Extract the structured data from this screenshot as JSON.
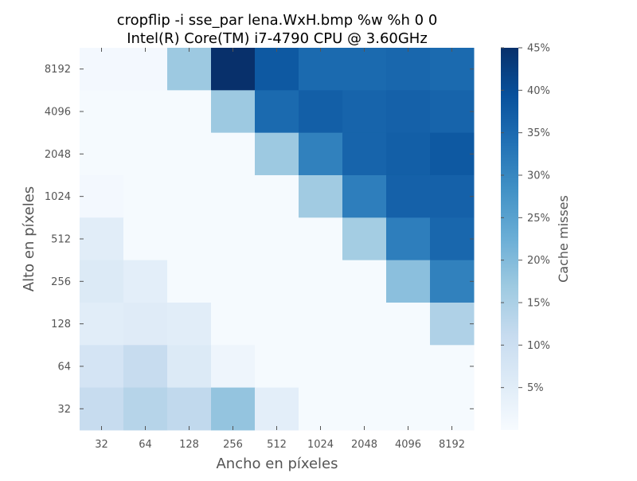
{
  "chart_data": {
    "type": "heatmap",
    "title_line1": "cropflip -i sse_par lena.WxH.bmp %w %h 0 0",
    "title_line2": "Intel(R) Core(TM) i7-4790 CPU @ 3.60GHz",
    "xlabel": "Ancho en píxeles",
    "ylabel": "Alto en píxeles",
    "x_categories": [
      "32",
      "64",
      "128",
      "256",
      "512",
      "1024",
      "2048",
      "4096",
      "8192"
    ],
    "y_categories": [
      "8192",
      "4096",
      "2048",
      "1024",
      "512",
      "256",
      "128",
      "64",
      "32"
    ],
    "values": [
      [
        1.0,
        1.0,
        17.0,
        45.0,
        38.0,
        35.0,
        35.0,
        35.5,
        35.0
      ],
      [
        0.5,
        0.5,
        0.5,
        17.0,
        35.0,
        37.0,
        36.0,
        36.5,
        36.0
      ],
      [
        0.5,
        0.5,
        0.5,
        0.5,
        17.0,
        31.0,
        36.0,
        37.0,
        38.0
      ],
      [
        1.0,
        0.5,
        0.5,
        0.5,
        0.5,
        16.5,
        31.5,
        36.5,
        36.5
      ],
      [
        5.0,
        0.5,
        0.5,
        0.5,
        0.5,
        0.5,
        16.0,
        31.5,
        35.5
      ],
      [
        6.0,
        4.5,
        0.5,
        0.5,
        0.5,
        0.5,
        0.5,
        19.0,
        31.0
      ],
      [
        5.0,
        5.5,
        5.0,
        0.5,
        0.5,
        0.5,
        0.5,
        0.5,
        14.5
      ],
      [
        8.0,
        11.0,
        6.0,
        2.0,
        0.5,
        0.5,
        0.5,
        0.5,
        0.5
      ],
      [
        11.0,
        13.5,
        12.0,
        18.0,
        4.5,
        0.5,
        0.5,
        0.5,
        0.5
      ]
    ],
    "colorbar": {
      "label": "Cache misses",
      "min": 0,
      "max": 45,
      "ticks": [
        5,
        10,
        15,
        20,
        25,
        30,
        35,
        40,
        45
      ],
      "tick_labels": [
        "5%",
        "10%",
        "15%",
        "20%",
        "25%",
        "30%",
        "35%",
        "40%",
        "45%"
      ]
    },
    "colormap": "Blues",
    "colormap_stops": [
      "#f7fbff",
      "#deebf7",
      "#c6dbef",
      "#9ecae1",
      "#6baed6",
      "#4292c6",
      "#2171b5",
      "#08519c",
      "#08306b"
    ]
  }
}
